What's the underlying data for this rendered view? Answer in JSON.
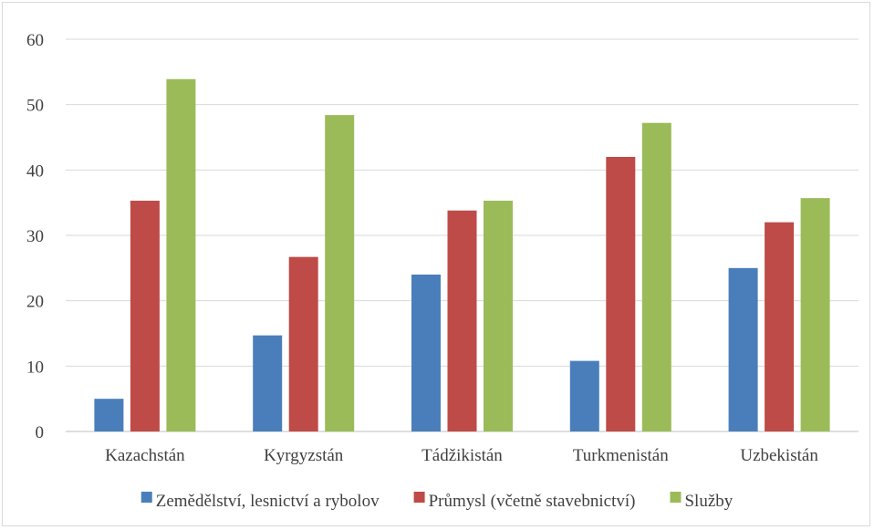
{
  "chart_data": {
    "type": "bar",
    "title": "",
    "xlabel": "",
    "ylabel": "",
    "ylim": [
      0,
      60
    ],
    "yticks": [
      0,
      10,
      20,
      30,
      40,
      50,
      60
    ],
    "grid": true,
    "legend_position": "bottom",
    "categories": [
      "Kazachstán",
      "Kyrgyzstán",
      "Tádžikistán",
      "Turkmenistán",
      "Uzbekistán"
    ],
    "series": [
      {
        "name": "Zemědělství, lesnictví a rybolov",
        "color": "#4a7ebb",
        "values": [
          5.0,
          14.7,
          24.0,
          10.8,
          25.0
        ]
      },
      {
        "name": "Průmysl (včetně stavebnictví)",
        "color": "#be4b48",
        "values": [
          35.3,
          26.7,
          33.8,
          42.0,
          32.0
        ]
      },
      {
        "name": "Služby",
        "color": "#9bbb59",
        "values": [
          53.9,
          48.4,
          35.3,
          47.2,
          35.7
        ]
      }
    ]
  }
}
